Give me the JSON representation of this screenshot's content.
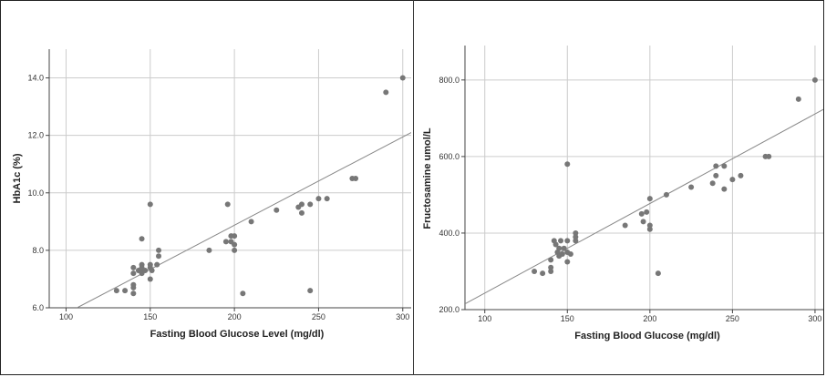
{
  "chart_data": [
    {
      "type": "scatter",
      "xlabel": "Fasting Blood Glucose Level (mg/dl)",
      "ylabel": "HbA1c (%)",
      "xlim": [
        90,
        305
      ],
      "ylim": [
        6.0,
        15.0
      ],
      "x_ticks": [
        "100",
        "150",
        "200",
        "250",
        "300"
      ],
      "y_ticks": [
        "6.0",
        "8.0",
        "10.0",
        "12.0",
        "14.0"
      ],
      "x_tick_values": [
        100,
        150,
        200,
        250,
        300
      ],
      "y_tick_values": [
        6,
        8,
        10,
        12,
        14
      ],
      "grid": true,
      "fit_line": [
        [
          106.5,
          6.0
        ],
        [
          305,
          12.1
        ]
      ],
      "point_color": "#777777",
      "points": [
        [
          130,
          6.6
        ],
        [
          135,
          6.6
        ],
        [
          140,
          6.7
        ],
        [
          140,
          6.8
        ],
        [
          140,
          6.5
        ],
        [
          140,
          7.2
        ],
        [
          140,
          7.4
        ],
        [
          143,
          7.3
        ],
        [
          144,
          7.3
        ],
        [
          145,
          7.2
        ],
        [
          145,
          7.5
        ],
        [
          145,
          7.4
        ],
        [
          145,
          8.4
        ],
        [
          147,
          7.3
        ],
        [
          150,
          7.4
        ],
        [
          150,
          7.5
        ],
        [
          150,
          7.0
        ],
        [
          151,
          7.3
        ],
        [
          155,
          7.8
        ],
        [
          155,
          8.0
        ],
        [
          150,
          9.6
        ],
        [
          154,
          7.5
        ],
        [
          185,
          8.0
        ],
        [
          195,
          8.3
        ],
        [
          196,
          9.6
        ],
        [
          198,
          8.3
        ],
        [
          198,
          8.5
        ],
        [
          200,
          8.5
        ],
        [
          200,
          8.0
        ],
        [
          200,
          8.2
        ],
        [
          205,
          6.5
        ],
        [
          210,
          9.0
        ],
        [
          225,
          9.4
        ],
        [
          238,
          9.5
        ],
        [
          240,
          9.3
        ],
        [
          240,
          9.6
        ],
        [
          245,
          9.6
        ],
        [
          245,
          6.6
        ],
        [
          250,
          9.8
        ],
        [
          255,
          9.8
        ],
        [
          270,
          10.5
        ],
        [
          272,
          10.5
        ],
        [
          290,
          13.5
        ],
        [
          300,
          14.0
        ]
      ]
    },
    {
      "type": "scatter",
      "xlabel": "Fasting Blood Glucose (mg/dl)",
      "ylabel": "Fructosamine umol/L",
      "xlim": [
        88,
        305
      ],
      "ylim": [
        200,
        890
      ],
      "x_ticks": [
        "100",
        "150",
        "200",
        "250",
        "300"
      ],
      "y_ticks": [
        "200.0",
        "400.0",
        "600.0",
        "800.0"
      ],
      "x_tick_values": [
        100,
        150,
        200,
        250,
        300
      ],
      "y_tick_values": [
        200,
        400,
        600,
        800
      ],
      "grid": true,
      "fit_line": [
        [
          88,
          215
        ],
        [
          305,
          723
        ]
      ],
      "point_color": "#777777",
      "points": [
        [
          130,
          300
        ],
        [
          135,
          295
        ],
        [
          140,
          300
        ],
        [
          140,
          310
        ],
        [
          140,
          330
        ],
        [
          142,
          380
        ],
        [
          143,
          370
        ],
        [
          144,
          350
        ],
        [
          145,
          360
        ],
        [
          145,
          340
        ],
        [
          146,
          380
        ],
        [
          147,
          345
        ],
        [
          148,
          360
        ],
        [
          150,
          350
        ],
        [
          150,
          380
        ],
        [
          150,
          580
        ],
        [
          150,
          325
        ],
        [
          152,
          345
        ],
        [
          155,
          380
        ],
        [
          155,
          390
        ],
        [
          155,
          400
        ],
        [
          185,
          420
        ],
        [
          195,
          450
        ],
        [
          196,
          430
        ],
        [
          198,
          455
        ],
        [
          200,
          410
        ],
        [
          200,
          420
        ],
        [
          200,
          490
        ],
        [
          205,
          295
        ],
        [
          210,
          500
        ],
        [
          225,
          520
        ],
        [
          238,
          530
        ],
        [
          240,
          575
        ],
        [
          240,
          550
        ],
        [
          245,
          515
        ],
        [
          245,
          575
        ],
        [
          250,
          540
        ],
        [
          255,
          550
        ],
        [
          270,
          600
        ],
        [
          272,
          600
        ],
        [
          290,
          750
        ],
        [
          300,
          800
        ]
      ]
    }
  ]
}
